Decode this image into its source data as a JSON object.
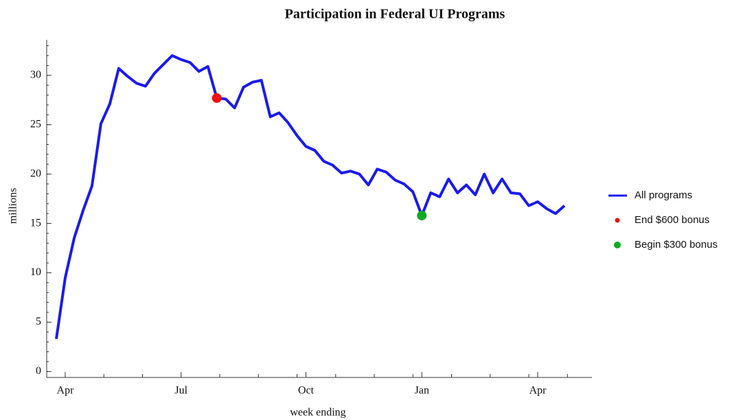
{
  "chart_data": {
    "type": "line",
    "title": "Participation in Federal UI Programs",
    "xlabel": "week ending",
    "ylabel": "millions",
    "categories": [
      null,
      "Apr",
      null,
      null,
      null,
      null,
      null,
      null,
      null,
      null,
      null,
      null,
      null,
      null,
      "Jul",
      null,
      null,
      null,
      null,
      null,
      null,
      null,
      null,
      null,
      null,
      null,
      null,
      null,
      "Oct",
      null,
      null,
      null,
      null,
      null,
      null,
      null,
      null,
      null,
      null,
      null,
      null,
      "Jan",
      null,
      null,
      null,
      null,
      null,
      null,
      null,
      null,
      null,
      null,
      null,
      null,
      "Apr",
      null,
      null,
      null
    ],
    "series": [
      {
        "name": "All programs",
        "color": "#1a1aee",
        "style": "line",
        "values": [
          3.3,
          9.5,
          13.5,
          16.3,
          18.8,
          25.1,
          27.1,
          30.7,
          29.9,
          29.2,
          28.9,
          30.2,
          31.1,
          32.0,
          31.6,
          31.3,
          30.4,
          30.9,
          27.7,
          27.6,
          26.7,
          28.8,
          29.3,
          29.5,
          25.8,
          26.2,
          25.2,
          23.9,
          22.8,
          22.4,
          21.3,
          20.9,
          20.1,
          20.3,
          20.0,
          18.9,
          20.5,
          20.2,
          19.4,
          19.0,
          18.2,
          15.8,
          18.1,
          17.7,
          19.5,
          18.1,
          18.9,
          17.9,
          20.0,
          18.1,
          19.5,
          18.1,
          18.0,
          16.8,
          17.2,
          16.5,
          16.0,
          16.8
        ]
      },
      {
        "name": "End $600 bonus",
        "color": "#ee1111",
        "style": "point",
        "values": [
          null,
          null,
          null,
          null,
          null,
          null,
          null,
          null,
          null,
          null,
          null,
          null,
          null,
          null,
          null,
          null,
          null,
          null,
          27.7,
          null,
          null,
          null,
          null,
          null,
          null,
          null,
          null,
          null,
          null,
          null,
          null,
          null,
          null,
          null,
          null,
          null,
          null,
          null,
          null,
          null,
          null,
          null,
          null,
          null,
          null,
          null,
          null,
          null,
          null,
          null,
          null,
          null,
          null,
          null,
          null,
          null,
          null,
          null
        ]
      },
      {
        "name": "Begin $300 bonus",
        "color": "#11aa22",
        "style": "point",
        "values": [
          null,
          null,
          null,
          null,
          null,
          null,
          null,
          null,
          null,
          null,
          null,
          null,
          null,
          null,
          null,
          null,
          null,
          null,
          null,
          null,
          null,
          null,
          null,
          null,
          null,
          null,
          null,
          null,
          null,
          null,
          null,
          null,
          null,
          null,
          null,
          null,
          null,
          null,
          null,
          null,
          null,
          15.8,
          null,
          null,
          null,
          null,
          null,
          null,
          null,
          null,
          null,
          null,
          null,
          null,
          null,
          null,
          null,
          null
        ]
      }
    ],
    "ylim": [
      -0.6,
      33.6
    ],
    "yticks": [
      0,
      5,
      10,
      15,
      20,
      25,
      30
    ],
    "legend": "right"
  }
}
